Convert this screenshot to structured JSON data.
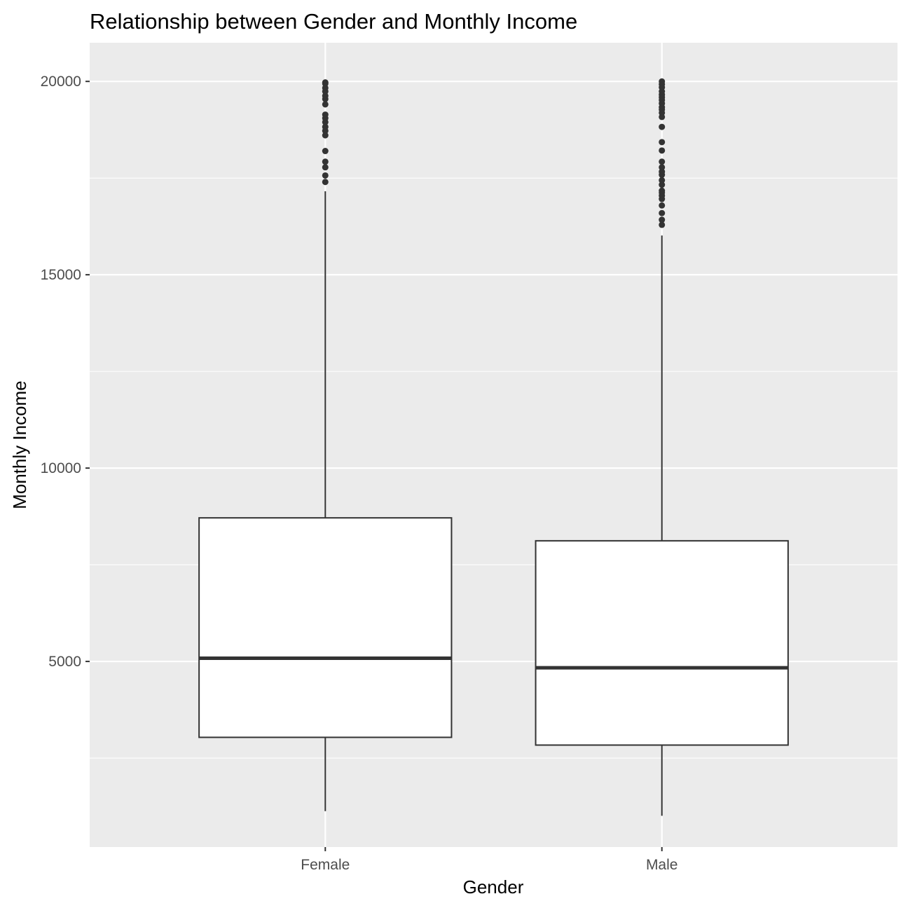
{
  "chart_data": {
    "type": "boxplot",
    "title": "Relationship between Gender and Monthly Income",
    "xlabel": "Gender",
    "ylabel": "Monthly Income",
    "categories": [
      "Female",
      "Male"
    ],
    "ylim": [
      200,
      21000
    ],
    "yticks": [
      5000,
      10000,
      15000,
      20000
    ],
    "grid": true,
    "legend": "none",
    "colors": {
      "panel": "#ebebeb",
      "grid": "#ffffff",
      "box_fill": "#ffffff",
      "box_line": "#333333",
      "tick_label": "#4d4d4d"
    },
    "boxes": [
      {
        "category": "Female",
        "whisker_low": 1129,
        "q1": 3037,
        "median": 5082,
        "q3": 8713,
        "whisker_high": 17159,
        "outliers": [
          17399,
          17567,
          17779,
          17924,
          18200,
          18606,
          18722,
          18824,
          18947,
          19049,
          19141,
          19406,
          19545,
          19627,
          19740,
          19833,
          19943,
          19973
        ]
      },
      {
        "category": "Male",
        "whisker_low": 1009,
        "q1": 2837,
        "median": 4837,
        "q3": 8120,
        "whisker_high": 16015,
        "outliers": [
          16291,
          16422,
          16595,
          16792,
          16959,
          17046,
          17123,
          17174,
          17328,
          17444,
          17584,
          17665,
          17779,
          17924,
          18213,
          18430,
          18824,
          19081,
          19189,
          19272,
          19331,
          19431,
          19517,
          19586,
          19658,
          19740,
          19847,
          19926,
          19999
        ]
      }
    ]
  }
}
